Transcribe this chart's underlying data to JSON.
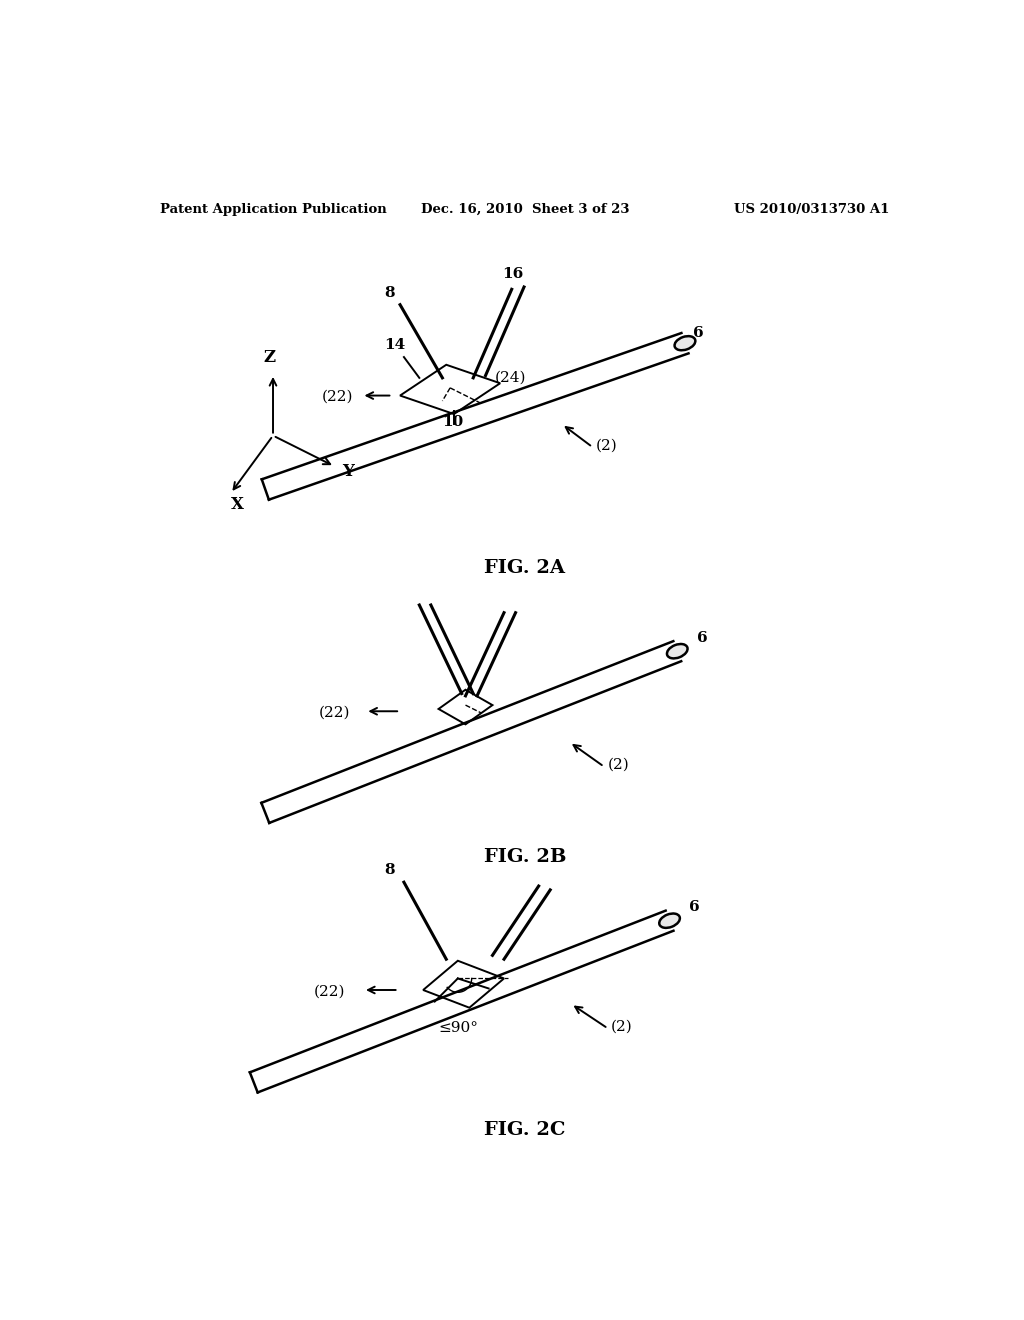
{
  "title_left": "Patent Application Publication",
  "title_mid": "Dec. 16, 2010  Sheet 3 of 23",
  "title_right": "US 2010/0313730 A1",
  "fig2a_label": "FIG. 2A",
  "fig2b_label": "FIG. 2B",
  "fig2c_label": "FIG. 2C",
  "bg_color": "#ffffff",
  "line_color": "#000000"
}
